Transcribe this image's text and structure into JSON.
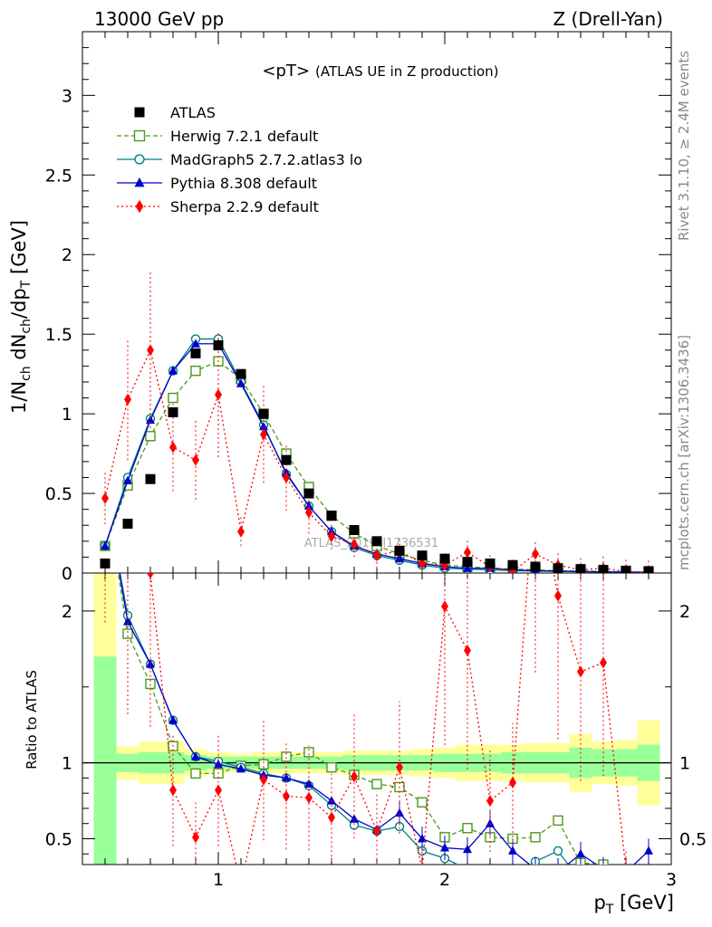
{
  "header": {
    "left": "13000 GeV pp",
    "right": "Z (Drell-Yan)"
  },
  "side_labels": {
    "rivet": "Rivet 3.1.10, ≥ 2.4M events",
    "mcplots": "mcplots.cern.ch [arXiv:1306.3436]"
  },
  "chart_data": {
    "type": "scatter",
    "title": "<pT> (ATLAS UE in Z production)",
    "title_main": "<pT>",
    "title_sub": "(ATLAS UE in Z production)",
    "watermark": "ATLAS_2019_I1736531",
    "xlabel": "p_T [GeV]",
    "ylabel": "1/N_ch dN_ch/dp_T [GeV]",
    "ratio_ylabel": "Ratio to ATLAS",
    "xlim": [
      0.4,
      3.0
    ],
    "ylim": [
      0,
      3.4
    ],
    "ratio_ylim": [
      0.33,
      2.25
    ],
    "x_major_ticks": [
      1,
      2,
      3
    ],
    "y_major_ticks": [
      0,
      0.5,
      1,
      1.5,
      2,
      2.5,
      3
    ],
    "ratio_major_ticks": [
      0.5,
      1,
      2
    ],
    "x": [
      0.5,
      0.6,
      0.7,
      0.8,
      0.9,
      1.0,
      1.1,
      1.2,
      1.3,
      1.4,
      1.5,
      1.6,
      1.7,
      1.8,
      1.9,
      2.0,
      2.1,
      2.2,
      2.3,
      2.4,
      2.5,
      2.6,
      2.7,
      2.8,
      2.9
    ],
    "legend_placement": "top-left",
    "series": [
      {
        "name": "ATLAS",
        "color": "#000000",
        "marker": "filled-square",
        "values": [
          0.06,
          0.31,
          0.59,
          1.01,
          1.38,
          1.43,
          1.25,
          1.0,
          0.71,
          0.5,
          0.36,
          0.27,
          0.2,
          0.14,
          0.11,
          0.09,
          0.07,
          0.06,
          0.05,
          0.04,
          0.03,
          0.025,
          0.02,
          0.015,
          0.012
        ]
      },
      {
        "name": "Herwig 7.2.1 default",
        "color": "#4a9a1a",
        "marker": "open-square",
        "line": "dashed",
        "values": [
          0.17,
          0.55,
          0.86,
          1.1,
          1.27,
          1.33,
          1.22,
          1.0,
          0.75,
          0.54,
          0.36,
          0.25,
          0.17,
          0.12,
          0.08,
          0.05,
          0.04,
          0.03,
          0.025,
          0.02,
          0.015,
          0.012,
          0.01,
          0.008,
          0.006
        ],
        "ratio": [
          2.8,
          1.85,
          1.52,
          1.11,
          0.93,
          0.93,
          0.98,
          0.99,
          1.04,
          1.07,
          0.97,
          0.92,
          0.86,
          0.84,
          0.74,
          0.51,
          0.57,
          0.51,
          0.5,
          0.51,
          0.62,
          0.34,
          0.33,
          0.25,
          0.2
        ]
      },
      {
        "name": "MadGraph5 2.7.2.atlas3 lo",
        "color": "#008080",
        "marker": "open-circle",
        "line": "solid",
        "values": [
          0.17,
          0.6,
          0.97,
          1.27,
          1.47,
          1.47,
          1.2,
          0.93,
          0.62,
          0.42,
          0.26,
          0.16,
          0.11,
          0.08,
          0.05,
          0.03,
          0.025,
          0.02,
          0.015,
          0.012,
          0.01,
          0.008,
          0.006,
          0.005,
          0.004
        ],
        "ratio": [
          2.8,
          1.97,
          1.65,
          1.28,
          1.04,
          1.01,
          0.97,
          0.93,
          0.9,
          0.85,
          0.72,
          0.59,
          0.55,
          0.58,
          0.42,
          0.37,
          0.3,
          0.28,
          0.25,
          0.35,
          0.42,
          0.22,
          0.2,
          0.18,
          0.15
        ]
      },
      {
        "name": "Pythia 8.308 default",
        "color": "#0000cc",
        "marker": "filled-triangle",
        "line": "solid",
        "values": [
          0.17,
          0.58,
          0.96,
          1.27,
          1.44,
          1.44,
          1.19,
          0.92,
          0.63,
          0.42,
          0.26,
          0.17,
          0.12,
          0.09,
          0.06,
          0.04,
          0.03,
          0.03,
          0.02,
          0.015,
          0.012,
          0.01,
          0.008,
          0.006,
          0.005
        ],
        "ratio": [
          2.8,
          1.93,
          1.65,
          1.28,
          1.04,
          0.99,
          0.96,
          0.92,
          0.9,
          0.86,
          0.75,
          0.63,
          0.56,
          0.67,
          0.5,
          0.44,
          0.43,
          0.6,
          0.42,
          0.3,
          0.28,
          0.4,
          0.3,
          0.28,
          0.42
        ]
      },
      {
        "name": "Sherpa 2.2.9 default",
        "color": "#ff0000",
        "marker": "filled-diamond",
        "line": "dotted",
        "values": [
          0.47,
          1.09,
          1.4,
          0.79,
          0.71,
          1.12,
          0.26,
          0.87,
          0.6,
          0.38,
          0.23,
          0.18,
          0.11,
          0.14,
          0.06,
          0.05,
          0.13,
          0.04,
          0.01,
          0.12,
          0.05,
          0.02,
          0.03,
          0.01,
          0.005
        ],
        "ratio": [
          3.5,
          2.4,
          2.25,
          0.82,
          0.51,
          0.82,
          0.2,
          0.89,
          0.78,
          0.77,
          0.64,
          0.91,
          0.55,
          0.97,
          0.3,
          2.03,
          1.74,
          0.75,
          0.87,
          2.9,
          2.1,
          1.6,
          1.66,
          0.3,
          0.2
        ]
      }
    ],
    "uncertainty_bands": {
      "inner_color": "#99ff99",
      "outer_color": "#ffff99",
      "inner": [
        0.7,
        0.06,
        0.07,
        0.07,
        0.05,
        0.04,
        0.04,
        0.04,
        0.04,
        0.04,
        0.04,
        0.05,
        0.05,
        0.05,
        0.05,
        0.06,
        0.06,
        0.06,
        0.07,
        0.07,
        0.07,
        0.1,
        0.09,
        0.09,
        0.12
      ],
      "outer": [
        2.2,
        0.11,
        0.14,
        0.14,
        0.09,
        0.07,
        0.06,
        0.07,
        0.07,
        0.07,
        0.07,
        0.08,
        0.08,
        0.08,
        0.09,
        0.1,
        0.12,
        0.12,
        0.12,
        0.13,
        0.13,
        0.19,
        0.14,
        0.15,
        0.28
      ]
    }
  }
}
